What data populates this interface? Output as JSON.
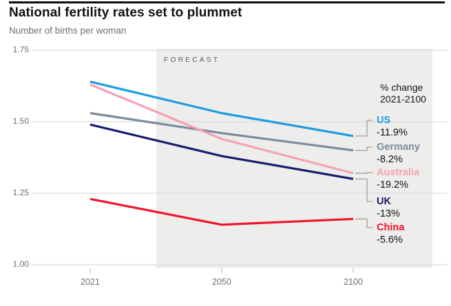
{
  "header": {
    "title": "National fertility rates set to plummet",
    "subtitle": "Number of births per woman"
  },
  "chart_data": {
    "type": "line",
    "title": "National fertility rates set to plummet",
    "ylabel": "Number of births per woman",
    "forecast_label": "FORECAST",
    "legend_note_line1": "% change",
    "legend_note_line2": "2021-2100",
    "x": [
      2021,
      2050,
      2100
    ],
    "x_tick_labels": [
      "2021",
      "2050",
      "2100"
    ],
    "y_tick_labels": [
      "1.75",
      "1.50",
      "1.25",
      "1.00"
    ],
    "y_tick_values": [
      1.75,
      1.5,
      1.25,
      1.0
    ],
    "ylim": [
      1.0,
      1.75
    ],
    "grid": "horizontal",
    "legend_position": "right-inline-labels",
    "forecast_region_start_x": "between 2021 and 2050",
    "series": [
      {
        "name": "US",
        "color": "#1b9ce0",
        "values": [
          1.64,
          1.53,
          1.45
        ],
        "pct_change": "-11.9%"
      },
      {
        "name": "Germany",
        "color": "#7b8b9e",
        "values": [
          1.53,
          1.46,
          1.4
        ],
        "pct_change": "-8.2%"
      },
      {
        "name": "Australia",
        "color": "#f7a1b3",
        "values": [
          1.63,
          1.44,
          1.32
        ],
        "pct_change": "-19.2%"
      },
      {
        "name": "UK",
        "color": "#171c6e",
        "values": [
          1.49,
          1.38,
          1.3
        ],
        "pct_change": "-13%"
      },
      {
        "name": "China",
        "color": "#f0142b",
        "values": [
          1.23,
          1.14,
          1.16
        ],
        "pct_change": "-5.6%"
      }
    ],
    "colors": {
      "forecast_bg": "#ededeb",
      "gridline": "#d9d9d9",
      "connector": "#9a9a9a",
      "axis_text": "#6d6d6d",
      "forecast_text": "#5f5f5f"
    }
  }
}
